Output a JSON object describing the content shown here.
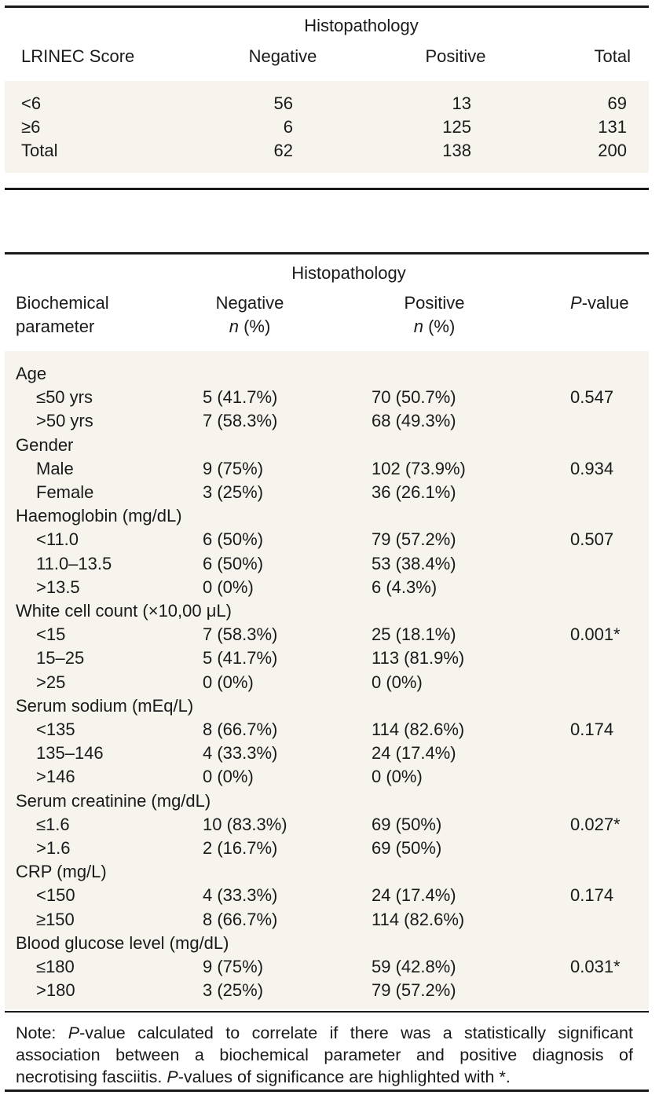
{
  "table1": {
    "group_header": "Histopathology",
    "columns": [
      "LRINEC Score",
      "Negative",
      "Positive",
      "Total"
    ],
    "rows": [
      [
        "<6",
        "56",
        "13",
        "69"
      ],
      [
        "≥6",
        "6",
        "125",
        "131"
      ],
      [
        "Total",
        "62",
        "138",
        "200"
      ]
    ]
  },
  "table2": {
    "group_header": "Histopathology",
    "col_param_line1": "Biochemical",
    "col_param_line2": "parameter",
    "col_neg_line1": "Negative",
    "col_pos_line1": "Positive",
    "col_n": "n",
    "col_pct": " (%)",
    "col_p_italic": "P",
    "col_p_rest": "-value",
    "rows": [
      {
        "label": "Age",
        "neg": "",
        "pos": "",
        "p": ""
      },
      {
        "label": "≤50 yrs",
        "neg": "5 (41.7%)",
        "pos": "70 (50.7%)",
        "p": "0.547"
      },
      {
        "label": ">50 yrs",
        "neg": "7 (58.3%)",
        "pos": "68 (49.3%)",
        "p": ""
      },
      {
        "label": "Gender",
        "neg": "",
        "pos": "",
        "p": ""
      },
      {
        "label": "Male",
        "neg": "9 (75%)",
        "pos": "102 (73.9%)",
        "p": "0.934"
      },
      {
        "label": "Female",
        "neg": "3 (25%)",
        "pos": "36 (26.1%)",
        "p": ""
      },
      {
        "label": "Haemoglobin (mg/dL)",
        "neg": "",
        "pos": "",
        "p": ""
      },
      {
        "label": "<11.0",
        "neg": "6 (50%)",
        "pos": "79 (57.2%)",
        "p": "0.507"
      },
      {
        "label": "11.0–13.5",
        "neg": "6 (50%)",
        "pos": "53 (38.4%)",
        "p": ""
      },
      {
        "label": ">13.5",
        "neg": "0 (0%)",
        "pos": "6 (4.3%)",
        "p": ""
      },
      {
        "label": "White cell count (×10,00 μL)",
        "neg": "",
        "pos": "",
        "p": ""
      },
      {
        "label": "<15",
        "neg": "7 (58.3%)",
        "pos": "25 (18.1%)",
        "p": "0.001*"
      },
      {
        "label": "15–25",
        "neg": "5 (41.7%)",
        "pos": "113 (81.9%)",
        "p": ""
      },
      {
        "label": ">25",
        "neg": "0 (0%)",
        "pos": "0 (0%)",
        "p": ""
      },
      {
        "label": "Serum sodium (mEq/L)",
        "neg": "",
        "pos": "",
        "p": ""
      },
      {
        "label": "<135",
        "neg": "8 (66.7%)",
        "pos": "114 (82.6%)",
        "p": "0.174"
      },
      {
        "label": "135–146",
        "neg": "4 (33.3%)",
        "pos": "24 (17.4%)",
        "p": ""
      },
      {
        "label": ">146",
        "neg": "0 (0%)",
        "pos": "0 (0%)",
        "p": ""
      },
      {
        "label": "Serum creatinine (mg/dL)",
        "neg": "",
        "pos": "",
        "p": ""
      },
      {
        "label": "≤1.6",
        "neg": "10 (83.3%)",
        "pos": "69 (50%)",
        "p": "0.027*"
      },
      {
        "label": ">1.6",
        "neg": "2 (16.7%)",
        "pos": "69 (50%)",
        "p": ""
      },
      {
        "label": "CRP (mg/L)",
        "neg": "",
        "pos": "",
        "p": ""
      },
      {
        "label": "<150",
        "neg": "4 (33.3%)",
        "pos": "24 (17.4%)",
        "p": "0.174"
      },
      {
        "label": "≥150",
        "neg": "8 (66.7%)",
        "pos": "114 (82.6%)",
        "p": ""
      },
      {
        "label": "Blood glucose level (mg/dL)",
        "neg": "",
        "pos": "",
        "p": ""
      },
      {
        "label": "≤180",
        "neg": "9 (75%)",
        "pos": "59 (42.8%)",
        "p": "0.031*"
      },
      {
        "label": ">180",
        "neg": "3 (25%)",
        "pos": "79 (57.2%)",
        "p": ""
      }
    ],
    "note_prefix": "Note: ",
    "note_p1": "P",
    "note_text1": "-value calculated to correlate if there was a statistically significant association between a biochemical parameter and positive diagnosis of necrotising fasciitis. ",
    "note_p2": "P",
    "note_text2": "-values of significance are highlighted with *."
  }
}
